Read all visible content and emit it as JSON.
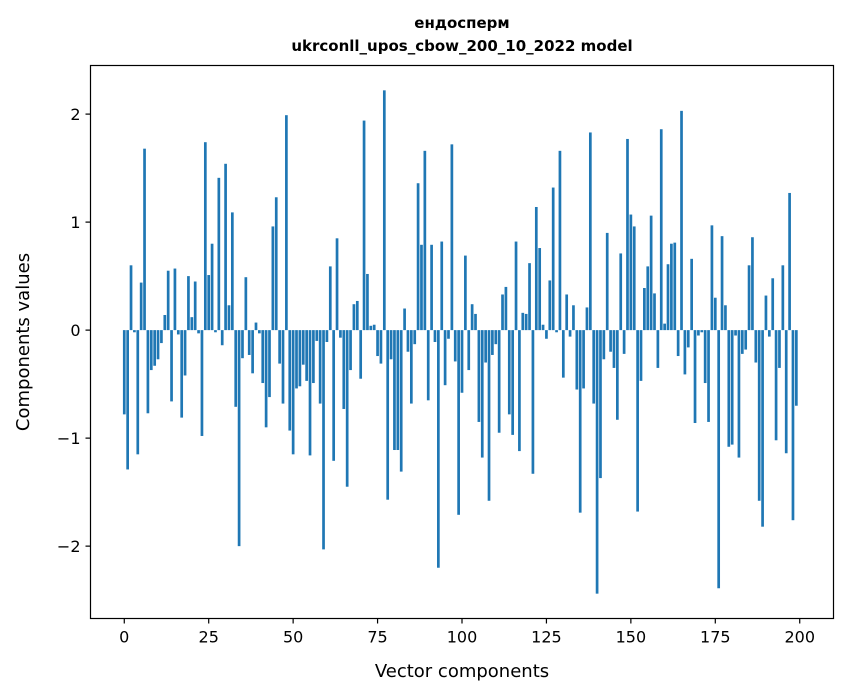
{
  "chart_data": {
    "type": "bar",
    "title_line1": "ендосперм",
    "title_line2": "ukrconll_upos_cbow_200_10_2022 model",
    "xlabel": "Vector components",
    "ylabel": "Components values",
    "xlim": [
      -10,
      210
    ],
    "ylim": [
      -2.67,
      2.45
    ],
    "xticks": [
      0,
      25,
      50,
      75,
      100,
      125,
      150,
      175,
      200
    ],
    "yticks": [
      -2,
      -1,
      0,
      1,
      2
    ],
    "ytick_labels": [
      "−2",
      "−1",
      "0",
      "1",
      "2"
    ],
    "bar_color": "#1f77b4",
    "values": [
      -0.78,
      -1.29,
      0.6,
      -0.02,
      -1.15,
      0.44,
      1.68,
      -0.77,
      -0.37,
      -0.33,
      -0.27,
      -0.12,
      0.14,
      0.55,
      -0.66,
      0.57,
      -0.04,
      -0.81,
      -0.42,
      0.5,
      0.12,
      0.45,
      -0.03,
      -0.98,
      1.74,
      0.51,
      0.8,
      -0.02,
      1.41,
      -0.14,
      1.54,
      0.23,
      1.09,
      -0.71,
      -2.0,
      -0.26,
      0.49,
      -0.23,
      -0.4,
      0.07,
      -0.03,
      -0.49,
      -0.9,
      -0.62,
      0.96,
      1.23,
      -0.31,
      -0.68,
      1.99,
      -0.93,
      -1.15,
      -0.54,
      -0.52,
      -0.32,
      -0.47,
      -1.16,
      -0.49,
      -0.1,
      -0.68,
      -2.03,
      -0.11,
      0.59,
      -1.21,
      0.85,
      -0.07,
      -0.73,
      -1.45,
      -0.37,
      0.24,
      0.27,
      -0.45,
      1.94,
      0.52,
      0.04,
      0.05,
      -0.24,
      -0.31,
      2.22,
      -1.57,
      -0.27,
      -1.11,
      -1.11,
      -1.31,
      0.2,
      -0.2,
      -0.68,
      -0.13,
      1.36,
      0.79,
      1.66,
      -0.65,
      0.79,
      -0.11,
      -2.2,
      0.82,
      -0.51,
      -0.08,
      1.72,
      -0.29,
      -1.71,
      -0.58,
      0.69,
      -0.37,
      0.24,
      0.15,
      -0.85,
      -1.18,
      -0.3,
      -1.58,
      -0.23,
      -0.13,
      -0.95,
      0.33,
      0.4,
      -0.78,
      -0.97,
      0.82,
      -1.12,
      0.16,
      0.15,
      0.62,
      -1.33,
      1.14,
      0.76,
      0.05,
      -0.08,
      0.46,
      1.32,
      -0.02,
      1.66,
      -0.44,
      0.33,
      -0.06,
      0.23,
      -0.55,
      -1.69,
      -0.54,
      0.21,
      1.83,
      -0.68,
      -2.44,
      -1.37,
      -0.27,
      0.9,
      -0.2,
      -0.35,
      -0.83,
      0.71,
      -0.22,
      1.77,
      1.07,
      0.96,
      -1.68,
      -0.47,
      0.39,
      0.59,
      1.06,
      0.34,
      -0.35,
      1.86,
      0.06,
      0.61,
      0.8,
      0.81,
      -0.24,
      2.03,
      -0.41,
      -0.16,
      0.66,
      -0.86,
      -0.05,
      -0.02,
      -0.49,
      -0.85,
      0.97,
      0.3,
      -2.39,
      0.87,
      0.23,
      -1.08,
      -1.06,
      -0.05,
      -1.18,
      -0.22,
      -0.18,
      0.6,
      0.86,
      -0.3,
      -1.58,
      -1.82,
      0.32,
      -0.06,
      0.48,
      -1.02,
      -0.35,
      0.6,
      -1.14,
      1.27,
      -1.76,
      -0.7
    ]
  }
}
